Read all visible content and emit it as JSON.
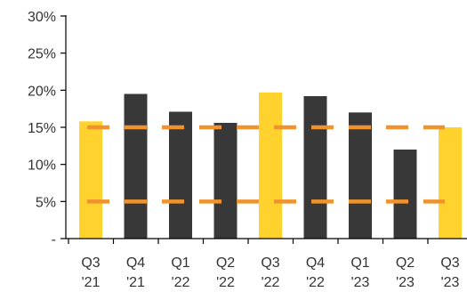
{
  "chart_data": {
    "type": "bar",
    "categories": [
      [
        "Q3",
        "'21"
      ],
      [
        "Q4",
        "'21"
      ],
      [
        "Q1",
        "'22"
      ],
      [
        "Q2",
        "'22"
      ],
      [
        "Q3",
        "'22"
      ],
      [
        "Q4",
        "'22"
      ],
      [
        "Q1",
        "'23"
      ],
      [
        "Q2",
        "'23"
      ],
      [
        "Q3",
        "'23"
      ]
    ],
    "values": [
      15.8,
      19.5,
      17.1,
      15.6,
      19.7,
      19.2,
      17.0,
      12.0,
      15.0
    ],
    "highlight": [
      true,
      false,
      false,
      false,
      true,
      false,
      false,
      false,
      true
    ],
    "yticks": [
      "-",
      "5%",
      "10%",
      "15%",
      "20%",
      "25%",
      "30%"
    ],
    "ylim": [
      0,
      30
    ],
    "reference_lines": [
      15,
      5
    ],
    "title": "",
    "xlabel": "",
    "ylabel": "",
    "grid": false,
    "colors": {
      "bar_default": "#383838",
      "bar_highlight": "#ffd22e",
      "reference_line": "#f0932e",
      "axis": "#000000"
    }
  }
}
